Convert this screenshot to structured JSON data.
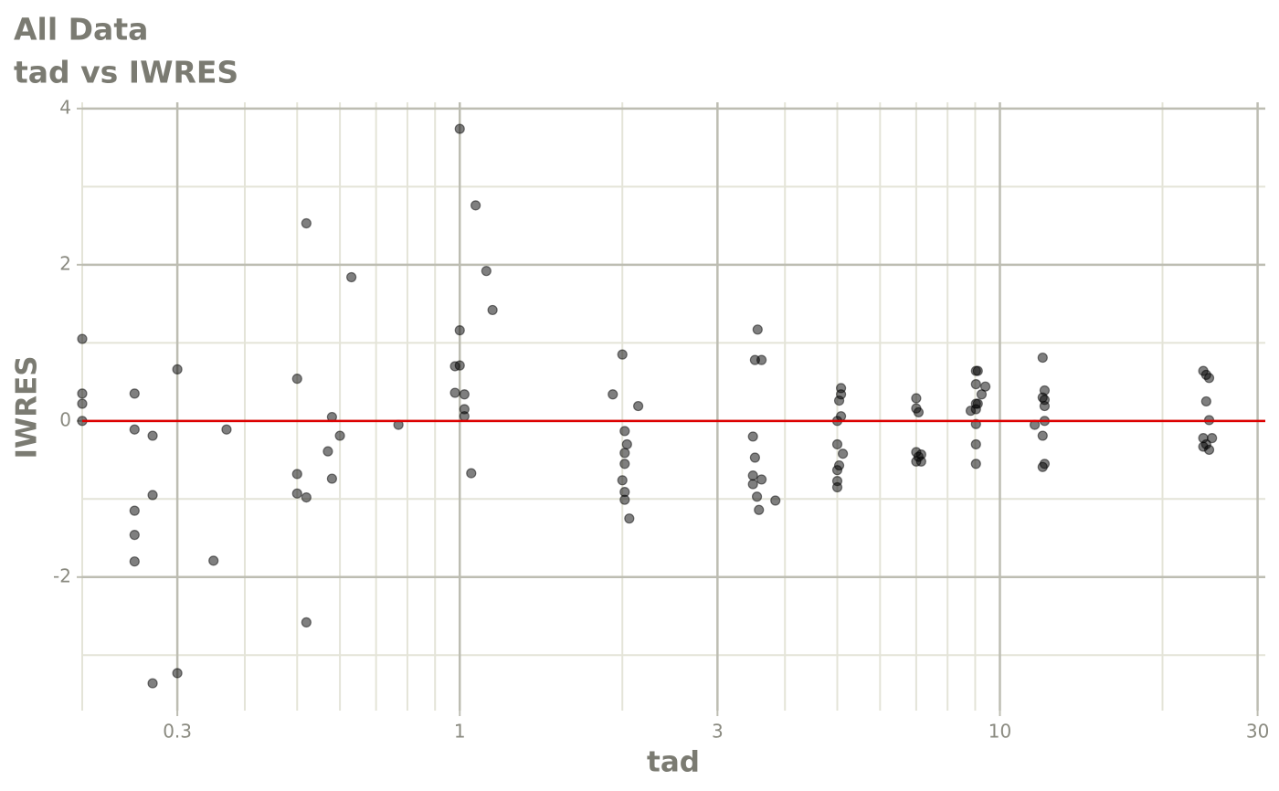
{
  "chart_data": {
    "type": "scatter",
    "title": "All Data",
    "subtitle": "tad vs IWRES",
    "xlabel": "tad",
    "ylabel": "IWRES",
    "xscale": "log",
    "xlim": [
      0.2,
      31
    ],
    "ylim": [
      -3.71,
      4.08
    ],
    "xticks": [
      0.3,
      1,
      3,
      10,
      30
    ],
    "yticks": [
      -2,
      0,
      2,
      4
    ],
    "x_minor_grid": [
      0.2,
      0.4,
      0.5,
      0.6,
      0.7,
      0.8,
      0.9,
      2,
      4,
      5,
      6,
      7,
      8,
      9,
      20
    ],
    "y_minor_grid": [
      -3,
      -1,
      1,
      3
    ],
    "grid": true,
    "color": "#000000",
    "opacity": 0.5,
    "reference_line": {
      "value": 0,
      "color": "#dd0000"
    },
    "x": [
      0.2,
      0.2,
      0.2,
      0.2,
      0.25,
      0.25,
      0.25,
      0.25,
      0.25,
      0.27,
      0.27,
      0.27,
      0.3,
      0.3,
      0.35,
      0.37,
      0.5,
      0.5,
      0.5,
      0.52,
      0.52,
      0.52,
      0.57,
      0.58,
      0.58,
      0.6,
      0.63,
      0.77,
      0.98,
      0.98,
      1.0,
      1.0,
      1.0,
      1.02,
      1.02,
      1.02,
      1.05,
      1.07,
      1.12,
      1.15,
      1.92,
      2.0,
      2.0,
      2.02,
      2.02,
      2.02,
      2.02,
      2.02,
      2.04,
      2.06,
      2.14,
      3.49,
      3.49,
      3.49,
      3.52,
      3.52,
      3.55,
      3.56,
      3.58,
      3.62,
      3.62,
      3.84,
      5.0,
      5.0,
      5.0,
      5.0,
      5.0,
      5.04,
      5.04,
      5.08,
      5.08,
      5.08,
      5.12,
      7.0,
      7.0,
      7.0,
      7.0,
      7.07,
      7.07,
      7.15,
      7.15,
      8.83,
      9.03,
      9.03,
      9.03,
      9.03,
      9.03,
      9.03,
      9.03,
      9.1,
      9.1,
      9.25,
      9.4,
      11.6,
      12.0,
      12.0,
      12.0,
      12.0,
      12.1,
      12.1,
      12.1,
      12.1,
      12.1,
      23.8,
      23.8,
      23.8,
      24.1,
      24.1,
      24.1,
      24.4,
      24.4,
      24.4,
      24.7
    ],
    "values": [
      1.05,
      0.35,
      0.22,
      0,
      0.35,
      -0.11,
      -1.15,
      -1.46,
      -1.8,
      -0.19,
      -0.95,
      -3.36,
      0.66,
      -3.23,
      -1.79,
      -0.11,
      0.54,
      -0.68,
      -0.93,
      2.53,
      -0.98,
      -2.58,
      -0.39,
      0.05,
      -0.74,
      -0.19,
      1.84,
      -0.05,
      0.7,
      0.36,
      3.74,
      1.16,
      0.71,
      0.34,
      0.15,
      0.06,
      -0.67,
      2.76,
      1.92,
      1.42,
      0.34,
      0.85,
      -0.76,
      -0.13,
      -0.41,
      -0.55,
      -0.91,
      -1.01,
      -0.3,
      -1.25,
      0.19,
      -0.2,
      -0.7,
      -0.81,
      0.78,
      -0.47,
      -0.97,
      1.17,
      -1.14,
      0.78,
      -0.75,
      -1.02,
      0,
      -0.3,
      -0.63,
      -0.77,
      -0.85,
      0.26,
      -0.57,
      0.42,
      0.34,
      0.06,
      -0.42,
      0.29,
      0.16,
      -0.4,
      -0.52,
      0.11,
      -0.46,
      -0.43,
      -0.52,
      0.13,
      0.64,
      0.47,
      0.22,
      0.15,
      -0.04,
      -0.3,
      -0.55,
      0.64,
      0.22,
      0.34,
      0.44,
      -0.05,
      0.81,
      0.3,
      -0.19,
      -0.59,
      0.39,
      0,
      0.19,
      -0.55,
      0.27,
      0.64,
      -0.22,
      -0.33,
      0.59,
      0.25,
      -0.3,
      0.55,
      0.01,
      -0.37,
      -0.22
    ]
  }
}
